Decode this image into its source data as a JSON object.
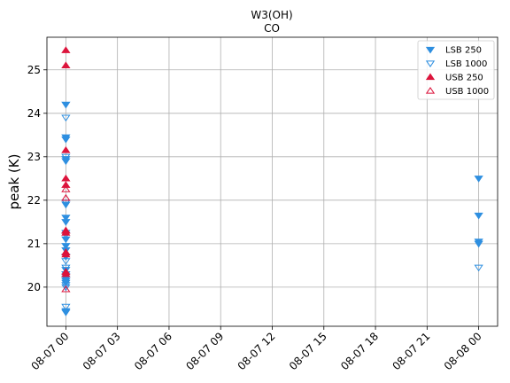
{
  "chart_data": {
    "type": "scatter",
    "title": "W3(OH)",
    "subtitle": "CO",
    "xlabel": "",
    "ylabel": "peak (K)",
    "grid": true,
    "legend_position": "top-right",
    "x_ticks": [
      "08-07 00",
      "08-07 03",
      "08-07 06",
      "08-07 09",
      "08-07 12",
      "08-07 15",
      "08-07 18",
      "08-07 21",
      "08-08 00"
    ],
    "x_tick_hours": [
      0,
      3,
      6,
      9,
      12,
      15,
      18,
      21,
      24
    ],
    "xlim_hours": [
      -1.1,
      25.1
    ],
    "y_ticks": [
      20,
      21,
      22,
      23,
      24,
      25
    ],
    "ylim": [
      19.1,
      25.75
    ],
    "series": [
      {
        "name": "LSB 250",
        "marker": "triangle-down",
        "filled": true,
        "color": "#2e8fe0",
        "x_hours": [
          0,
          0,
          0,
          0,
          0,
          0,
          0,
          0,
          0,
          0,
          0,
          0,
          0,
          0,
          0,
          0,
          0,
          0,
          0,
          0,
          24,
          24,
          24,
          24
        ],
        "y": [
          24.2,
          23.45,
          23.4,
          22.95,
          22.9,
          21.9,
          21.6,
          21.5,
          21.25,
          21.1,
          20.95,
          20.85,
          20.7,
          20.4,
          20.3,
          20.2,
          20.15,
          20.1,
          19.45,
          19.42,
          22.5,
          21.65,
          21.05,
          21.0
        ]
      },
      {
        "name": "LSB 1000",
        "marker": "triangle-down",
        "filled": false,
        "color": "#2e8fe0",
        "x_hours": [
          0,
          0,
          0,
          0,
          0,
          0,
          0,
          0,
          0,
          0,
          0,
          0,
          24
        ],
        "y": [
          23.9,
          23.0,
          21.95,
          21.2,
          20.6,
          20.45,
          20.3,
          20.25,
          20.15,
          20.05,
          20.0,
          19.55,
          20.45
        ]
      },
      {
        "name": "USB 250",
        "marker": "triangle-up",
        "filled": true,
        "color": "#dc143c",
        "x_hours": [
          0,
          0,
          0,
          0,
          0,
          0,
          0,
          0,
          0,
          0,
          0
        ],
        "y": [
          25.45,
          25.1,
          23.15,
          22.5,
          22.35,
          21.3,
          21.25,
          20.8,
          20.75,
          20.35,
          20.3
        ]
      },
      {
        "name": "USB 1000",
        "marker": "triangle-up",
        "filled": false,
        "color": "#dc143c",
        "x_hours": [
          0,
          0,
          0,
          0,
          0
        ],
        "y": [
          22.25,
          22.05,
          21.3,
          20.8,
          19.95
        ]
      }
    ]
  }
}
